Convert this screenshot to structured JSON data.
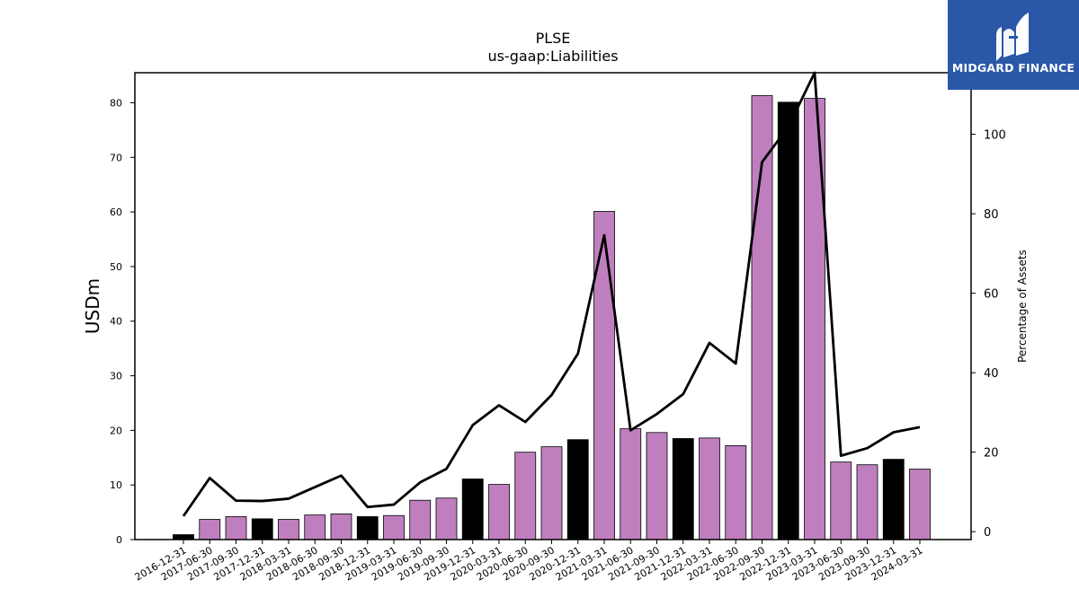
{
  "chart_data": {
    "type": "bar",
    "title": "PLSE",
    "subtitle": "us-gaap:Liabilities",
    "ylabel": "USDm",
    "y2label": "Percentage of Assets",
    "ylim": [
      0,
      85.5
    ],
    "y2lim": [
      -2,
      115.5
    ],
    "yticks": [
      0,
      10,
      20,
      30,
      40,
      50,
      60,
      70,
      80
    ],
    "y2ticks": [
      0,
      20,
      40,
      60,
      80,
      100
    ],
    "categories": [
      "2016-12-31",
      "2017-06-30",
      "2017-09-30",
      "2017-12-31",
      "2018-03-31",
      "2018-06-30",
      "2018-09-30",
      "2018-12-31",
      "2019-03-31",
      "2019-06-30",
      "2019-09-30",
      "2019-12-31",
      "2020-03-31",
      "2020-06-30",
      "2020-09-30",
      "2020-12-31",
      "2021-03-31",
      "2021-06-30",
      "2021-09-30",
      "2021-12-31",
      "2022-03-31",
      "2022-06-30",
      "2022-09-30",
      "2022-12-31",
      "2023-03-31",
      "2023-06-30",
      "2023-09-30",
      "2023-12-31",
      "2024-03-31"
    ],
    "series": [
      {
        "values": [
          0.9,
          3.7,
          4.2,
          3.8,
          3.7,
          4.5,
          4.7,
          4.2,
          4.4,
          7.2,
          7.6,
          11.1,
          10.1,
          16.0,
          17.0,
          18.3,
          60.1,
          20.3,
          19.6,
          18.5,
          18.6,
          17.2,
          81.3,
          80.1,
          80.8,
          14.2,
          13.7,
          14.7,
          12.9
        ],
        "colors": [
          "#000000",
          "#bf7fbf",
          "#bf7fbf",
          "#000000",
          "#bf7fbf",
          "#bf7fbf",
          "#bf7fbf",
          "#000000",
          "#bf7fbf",
          "#bf7fbf",
          "#bf7fbf",
          "#000000",
          "#bf7fbf",
          "#bf7fbf",
          "#bf7fbf",
          "#000000",
          "#bf7fbf",
          "#bf7fbf",
          "#bf7fbf",
          "#000000",
          "#bf7fbf",
          "#bf7fbf",
          "#bf7fbf",
          "#000000",
          "#bf7fbf",
          "#bf7fbf",
          "#bf7fbf",
          "#000000",
          "#bf7fbf"
        ]
      },
      {
        "type": "line",
        "axis": "right",
        "color": "#000000",
        "values": [
          3.9,
          13.5,
          7.8,
          7.7,
          8.3,
          11.2,
          14.1,
          6.2,
          6.8,
          12.4,
          15.8,
          26.8,
          31.8,
          27.6,
          34.4,
          44.8,
          74.6,
          25.5,
          29.6,
          34.6,
          47.5,
          42.3,
          93.0,
          101.9,
          115.5,
          19.1,
          21.0,
          25.0,
          26.3
        ]
      }
    ],
    "grid": false,
    "legend": "none"
  },
  "logo": {
    "text": "MIDGARD FINANCE",
    "color": "#2b57a8"
  }
}
